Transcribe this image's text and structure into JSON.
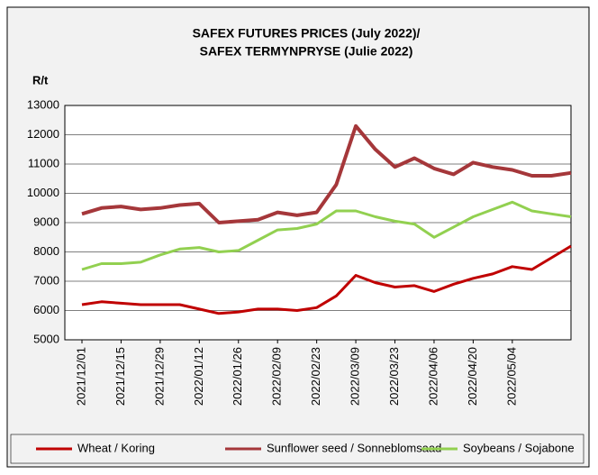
{
  "chart_data": {
    "type": "line",
    "title": [
      "SAFEX FUTURES PRICES (July 2022)/",
      "SAFEX TERMYNPRYSE  (Julie 2022)"
    ],
    "y_label": "R/t",
    "categories": [
      "2021/12/01",
      null,
      "2021/12/15",
      null,
      "2021/12/29",
      null,
      "2022/01/12",
      null,
      "2022/01/26",
      null,
      "2022/02/09",
      null,
      "2022/02/23",
      null,
      "2022/03/09",
      null,
      "2022/03/23",
      null,
      "2022/04/06",
      null,
      "2022/04/20",
      null,
      "2022/05/04",
      null,
      null,
      null
    ],
    "series": [
      {
        "name": "Wheat / Koring",
        "color": "#c00000",
        "values": [
          6200,
          6300,
          6250,
          6200,
          6200,
          6200,
          6050,
          5900,
          5950,
          6050,
          6050,
          6000,
          6100,
          6500,
          7200,
          6950,
          6800,
          6850,
          6650,
          6900,
          7100,
          7250,
          7500,
          7400,
          7800,
          8200
        ]
      },
      {
        "name": "Sunflower seed / Sonneblomsaad",
        "color": "#a5373a",
        "values": [
          9300,
          9500,
          9550,
          9450,
          9500,
          9600,
          9650,
          9000,
          9050,
          9100,
          9350,
          9250,
          9350,
          10300,
          12300,
          11500,
          10900,
          11200,
          10850,
          10650,
          11050,
          10900,
          10800,
          10600,
          10600,
          10700
        ]
      },
      {
        "name": "Soybeans / Sojabone",
        "color": "#92d050",
        "values": [
          7400,
          7600,
          7600,
          7650,
          7900,
          8100,
          8150,
          8000,
          8050,
          8400,
          8750,
          8800,
          8950,
          9400,
          9400,
          9200,
          9050,
          8950,
          8500,
          8850,
          9200,
          9450,
          9700,
          9400,
          9300,
          9200
        ]
      }
    ],
    "ylim": [
      5000,
      13000
    ],
    "yticks": [
      5000,
      6000,
      7000,
      8000,
      9000,
      10000,
      11000,
      12000,
      13000
    ],
    "grid": true,
    "legend": "bottom"
  }
}
